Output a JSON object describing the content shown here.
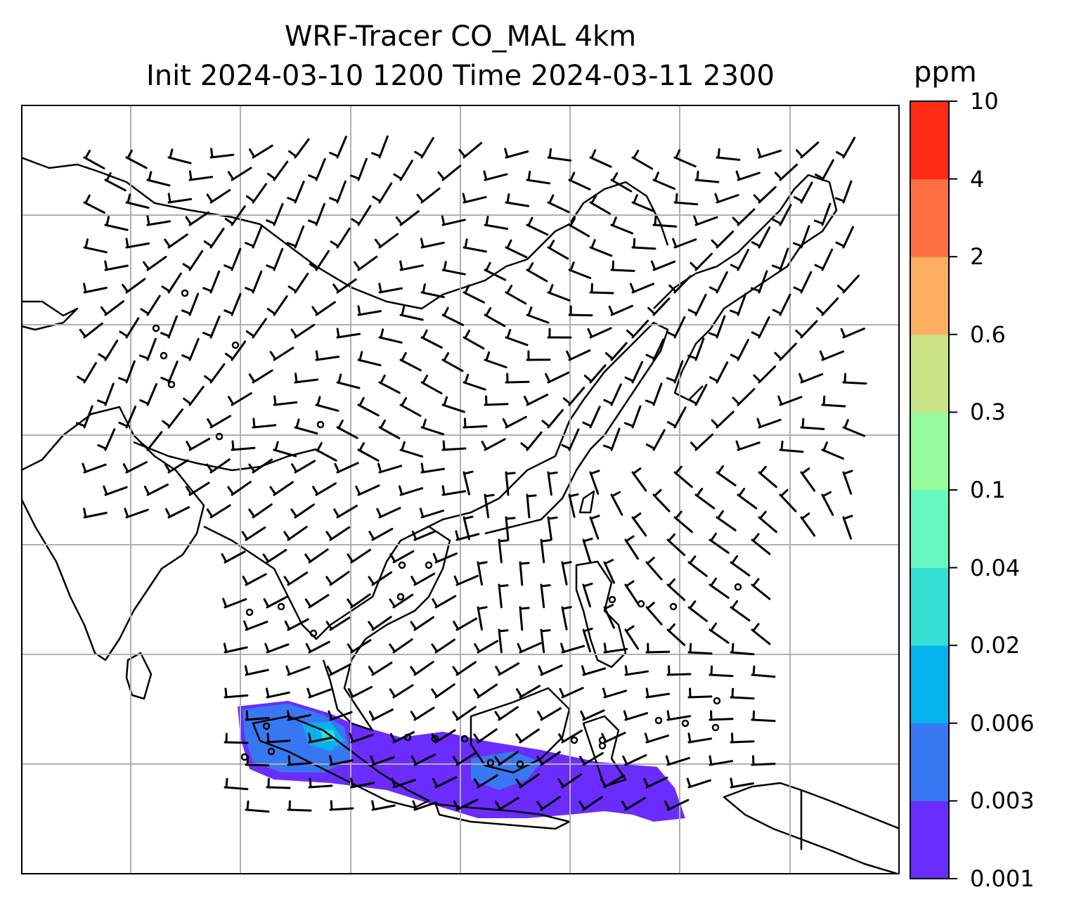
{
  "title": {
    "line1": "WRF-Tracer CO_MAL 4km",
    "line2": "Init 2024-03-10 1200 Time 2024-03-11 2300"
  },
  "colorbar": {
    "unit": "ppm",
    "levels": [
      "0.001",
      "0.003",
      "0.006",
      "0.02",
      "0.04",
      "0.1",
      "0.3",
      "0.6",
      "2",
      "4",
      "10"
    ],
    "colors": [
      "#6a2cff",
      "#3778f2",
      "#05b2ee",
      "#35dfd3",
      "#66f8c0",
      "#96fb9c",
      "#c9e386",
      "#fdae61",
      "#ff7043",
      "#ff2b14"
    ]
  },
  "map": {
    "gridlines": true,
    "coastline_color": "#000000",
    "grid_color": "#b0b0b0",
    "wind_barb_color": "#000000"
  }
}
